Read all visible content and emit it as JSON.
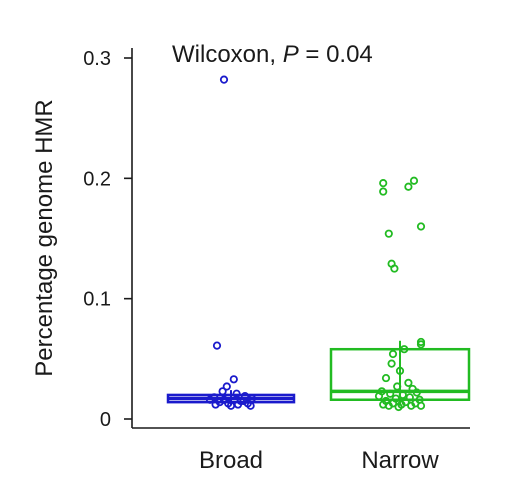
{
  "chart_data": {
    "type": "box",
    "ylabel": "Percentage genome HMR",
    "xlabel": "",
    "ylim": [
      0,
      0.3
    ],
    "yticks": [
      {
        "value": 0,
        "label": "0"
      },
      {
        "value": 0.1,
        "label": "0.1"
      },
      {
        "value": 0.2,
        "label": "0.2"
      },
      {
        "value": 0.3,
        "label": "0.3"
      }
    ],
    "annotation": {
      "prefix": "Wilcoxon, ",
      "italic": "P",
      "suffix": " = 0.04"
    },
    "categories": [
      "Broad",
      "Narrow"
    ],
    "grid": false,
    "legend": "none",
    "series": [
      {
        "category": "Broad",
        "color": "#1a1acc",
        "box": {
          "q1": 0.014,
          "median": 0.017,
          "q3": 0.02,
          "whisker_low": 0.012,
          "whisker_high": 0.024
        },
        "points": [
          {
            "jitter": -0.05,
            "y": 0.282
          },
          {
            "jitter": -0.1,
            "y": 0.061
          },
          {
            "jitter": 0.02,
            "y": 0.033
          },
          {
            "jitter": -0.03,
            "y": 0.027
          },
          {
            "jitter": -0.06,
            "y": 0.023
          },
          {
            "jitter": 0.04,
            "y": 0.021
          },
          {
            "jitter": 0.1,
            "y": 0.019
          },
          {
            "jitter": -0.12,
            "y": 0.018
          },
          {
            "jitter": 0.15,
            "y": 0.017
          },
          {
            "jitter": -0.15,
            "y": 0.016
          },
          {
            "jitter": 0.07,
            "y": 0.015
          },
          {
            "jitter": -0.08,
            "y": 0.014
          },
          {
            "jitter": 0.12,
            "y": 0.013
          },
          {
            "jitter": -0.02,
            "y": 0.013
          },
          {
            "jitter": 0.05,
            "y": 0.012
          },
          {
            "jitter": -0.11,
            "y": 0.012
          },
          {
            "jitter": 0.14,
            "y": 0.011
          },
          {
            "jitter": 0.0,
            "y": 0.011
          },
          {
            "jitter": -0.05,
            "y": 0.016
          },
          {
            "jitter": 0.09,
            "y": 0.015
          }
        ]
      },
      {
        "category": "Narrow",
        "color": "#22bb22",
        "box": {
          "q1": 0.016,
          "median": 0.023,
          "q3": 0.058,
          "whisker_low": 0.011,
          "whisker_high": 0.065
        },
        "points": [
          {
            "jitter": -0.12,
            "y": 0.196
          },
          {
            "jitter": 0.1,
            "y": 0.198
          },
          {
            "jitter": 0.06,
            "y": 0.193
          },
          {
            "jitter": -0.12,
            "y": 0.189
          },
          {
            "jitter": 0.15,
            "y": 0.16
          },
          {
            "jitter": -0.08,
            "y": 0.154
          },
          {
            "jitter": -0.06,
            "y": 0.129
          },
          {
            "jitter": -0.04,
            "y": 0.125
          },
          {
            "jitter": 0.15,
            "y": 0.064
          },
          {
            "jitter": 0.15,
            "y": 0.062
          },
          {
            "jitter": 0.03,
            "y": 0.058
          },
          {
            "jitter": -0.05,
            "y": 0.054
          },
          {
            "jitter": -0.06,
            "y": 0.046
          },
          {
            "jitter": 0.0,
            "y": 0.04
          },
          {
            "jitter": -0.1,
            "y": 0.034
          },
          {
            "jitter": 0.06,
            "y": 0.03
          },
          {
            "jitter": -0.02,
            "y": 0.027
          },
          {
            "jitter": 0.09,
            "y": 0.025
          },
          {
            "jitter": -0.13,
            "y": 0.023
          },
          {
            "jitter": 0.12,
            "y": 0.022
          },
          {
            "jitter": -0.07,
            "y": 0.021
          },
          {
            "jitter": 0.02,
            "y": 0.02
          },
          {
            "jitter": -0.15,
            "y": 0.019
          },
          {
            "jitter": 0.07,
            "y": 0.018
          },
          {
            "jitter": -0.03,
            "y": 0.017
          },
          {
            "jitter": 0.14,
            "y": 0.016
          },
          {
            "jitter": -0.1,
            "y": 0.015
          },
          {
            "jitter": 0.04,
            "y": 0.014
          },
          {
            "jitter": -0.05,
            "y": 0.013
          },
          {
            "jitter": 0.11,
            "y": 0.013
          },
          {
            "jitter": -0.12,
            "y": 0.012
          },
          {
            "jitter": 0.01,
            "y": 0.012
          },
          {
            "jitter": 0.08,
            "y": 0.011
          },
          {
            "jitter": -0.08,
            "y": 0.011
          },
          {
            "jitter": 0.15,
            "y": 0.011
          },
          {
            "jitter": -0.01,
            "y": 0.01
          }
        ]
      }
    ]
  }
}
